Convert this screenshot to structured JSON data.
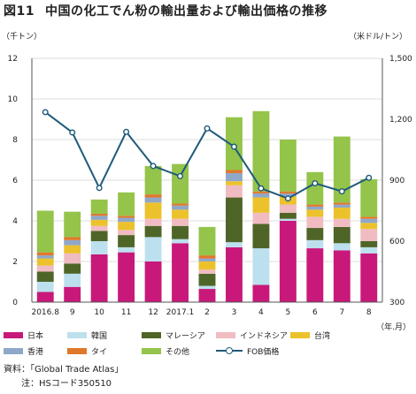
{
  "header": {
    "fig_number": "図11",
    "title": "中国の化工でん粉の輸出量および輸出価格の推移"
  },
  "units": {
    "left": "（千トン）",
    "right": "（米ドル/トン）",
    "x": "（年.月）"
  },
  "notes": {
    "source": "資料：「Global Trade Atlas」",
    "note": "注：HSコード350510"
  },
  "colors": {
    "japan": "#c8197a",
    "korea": "#bde0ee",
    "malaysia": "#4f6528",
    "indonesia": "#f0bcc2",
    "taiwan": "#ecc22c",
    "hongkong": "#8fa7c9",
    "thailand": "#e0782c",
    "other": "#94c44a",
    "fob": "#1f5a7a"
  },
  "chart_data": {
    "type": "bar",
    "stacked": true,
    "categories": [
      "2016.8",
      "9",
      "10",
      "11",
      "12",
      "2017.1",
      "2",
      "3",
      "4",
      "5",
      "6",
      "7",
      "8"
    ],
    "series": [
      {
        "name": "日本",
        "key": "japan",
        "values": [
          0.5,
          0.75,
          2.35,
          2.45,
          2.0,
          2.9,
          0.65,
          2.7,
          0.85,
          4.0,
          2.65,
          2.55,
          2.4
        ]
      },
      {
        "name": "韓国",
        "key": "korea",
        "values": [
          0.5,
          0.65,
          0.65,
          0.25,
          1.2,
          0.2,
          0.15,
          0.25,
          1.8,
          0.1,
          0.4,
          0.35,
          0.3
        ]
      },
      {
        "name": "マレーシア",
        "key": "malaysia",
        "values": [
          0.5,
          0.5,
          0.5,
          0.6,
          0.55,
          0.65,
          0.6,
          2.2,
          1.2,
          0.3,
          0.6,
          0.8,
          0.3
        ]
      },
      {
        "name": "インドネシア",
        "key": "indonesia",
        "values": [
          0.3,
          0.5,
          0.25,
          0.25,
          0.35,
          0.35,
          0.2,
          0.6,
          0.55,
          0.4,
          0.55,
          0.4,
          0.6
        ]
      },
      {
        "name": "台湾",
        "key": "taiwan",
        "values": [
          0.35,
          0.4,
          0.3,
          0.4,
          0.8,
          0.45,
          0.4,
          0.2,
          0.75,
          0.4,
          0.35,
          0.55,
          0.3
        ]
      },
      {
        "name": "香港",
        "key": "hongkong",
        "values": [
          0.15,
          0.25,
          0.2,
          0.2,
          0.25,
          0.2,
          0.15,
          0.4,
          0.2,
          0.15,
          0.15,
          0.15,
          0.2
        ]
      },
      {
        "name": "タイ",
        "key": "thailand",
        "values": [
          0.15,
          0.15,
          0.1,
          0.1,
          0.15,
          0.1,
          0.15,
          0.15,
          0.1,
          0.1,
          0.1,
          0.1,
          0.1
        ]
      },
      {
        "name": "その他",
        "key": "other",
        "values": [
          2.05,
          1.25,
          0.7,
          1.15,
          1.4,
          1.95,
          1.4,
          2.6,
          3.95,
          2.55,
          1.6,
          3.25,
          1.85
        ]
      }
    ],
    "line": {
      "name": "FOB価格",
      "key": "fob",
      "axis": "right",
      "values": [
        1235,
        1135,
        862,
        1138,
        970,
        920,
        1155,
        1065,
        860,
        810,
        885,
        845,
        912
      ]
    },
    "ylim": [
      0,
      12
    ],
    "yticks": [
      0,
      2,
      4,
      6,
      8,
      10,
      12
    ],
    "y2lim": [
      300,
      1500
    ],
    "y2ticks": [
      "300",
      "600",
      "900",
      "1,200",
      "1,500"
    ],
    "legend_position": "bottom",
    "grid": true
  }
}
